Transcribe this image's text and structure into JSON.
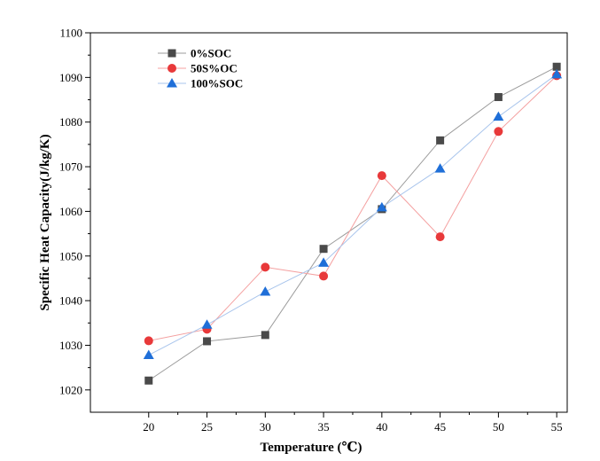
{
  "chart_data": {
    "type": "line",
    "xlabel": "Temperature (℃)",
    "ylabel": "Specific Heat Capacity(J/kg/K)",
    "xlim": [
      15,
      55.9
    ],
    "ylim": [
      1015,
      1100
    ],
    "x": [
      20,
      25,
      30,
      35,
      40,
      45,
      50,
      55
    ],
    "xticks": [
      20,
      25,
      30,
      35,
      40,
      45,
      50,
      55
    ],
    "yticks": [
      1020,
      1030,
      1040,
      1050,
      1060,
      1070,
      1080,
      1090,
      1100
    ],
    "grid": false,
    "legend_position": "top-left",
    "series": [
      {
        "name": "0%SOC",
        "marker": "square",
        "color": "#4a4a4a",
        "line_color": "#9b9b9b",
        "values": [
          1022.1,
          1030.9,
          1032.3,
          1051.6,
          1060.5,
          1075.9,
          1085.6,
          1092.4
        ]
      },
      {
        "name": "50S%OC",
        "marker": "circle",
        "color": "#e8393a",
        "line_color": "#f4a0a0",
        "values": [
          1031.0,
          1033.6,
          1047.5,
          1045.5,
          1068.0,
          1054.3,
          1077.9,
          1090.4
        ]
      },
      {
        "name": "100%SOC",
        "marker": "triangle",
        "color": "#1f6fd8",
        "line_color": "#a9c5ec",
        "values": [
          1027.8,
          1034.6,
          1042.0,
          1048.5,
          1060.9,
          1069.6,
          1081.2,
          1090.7
        ]
      }
    ]
  }
}
